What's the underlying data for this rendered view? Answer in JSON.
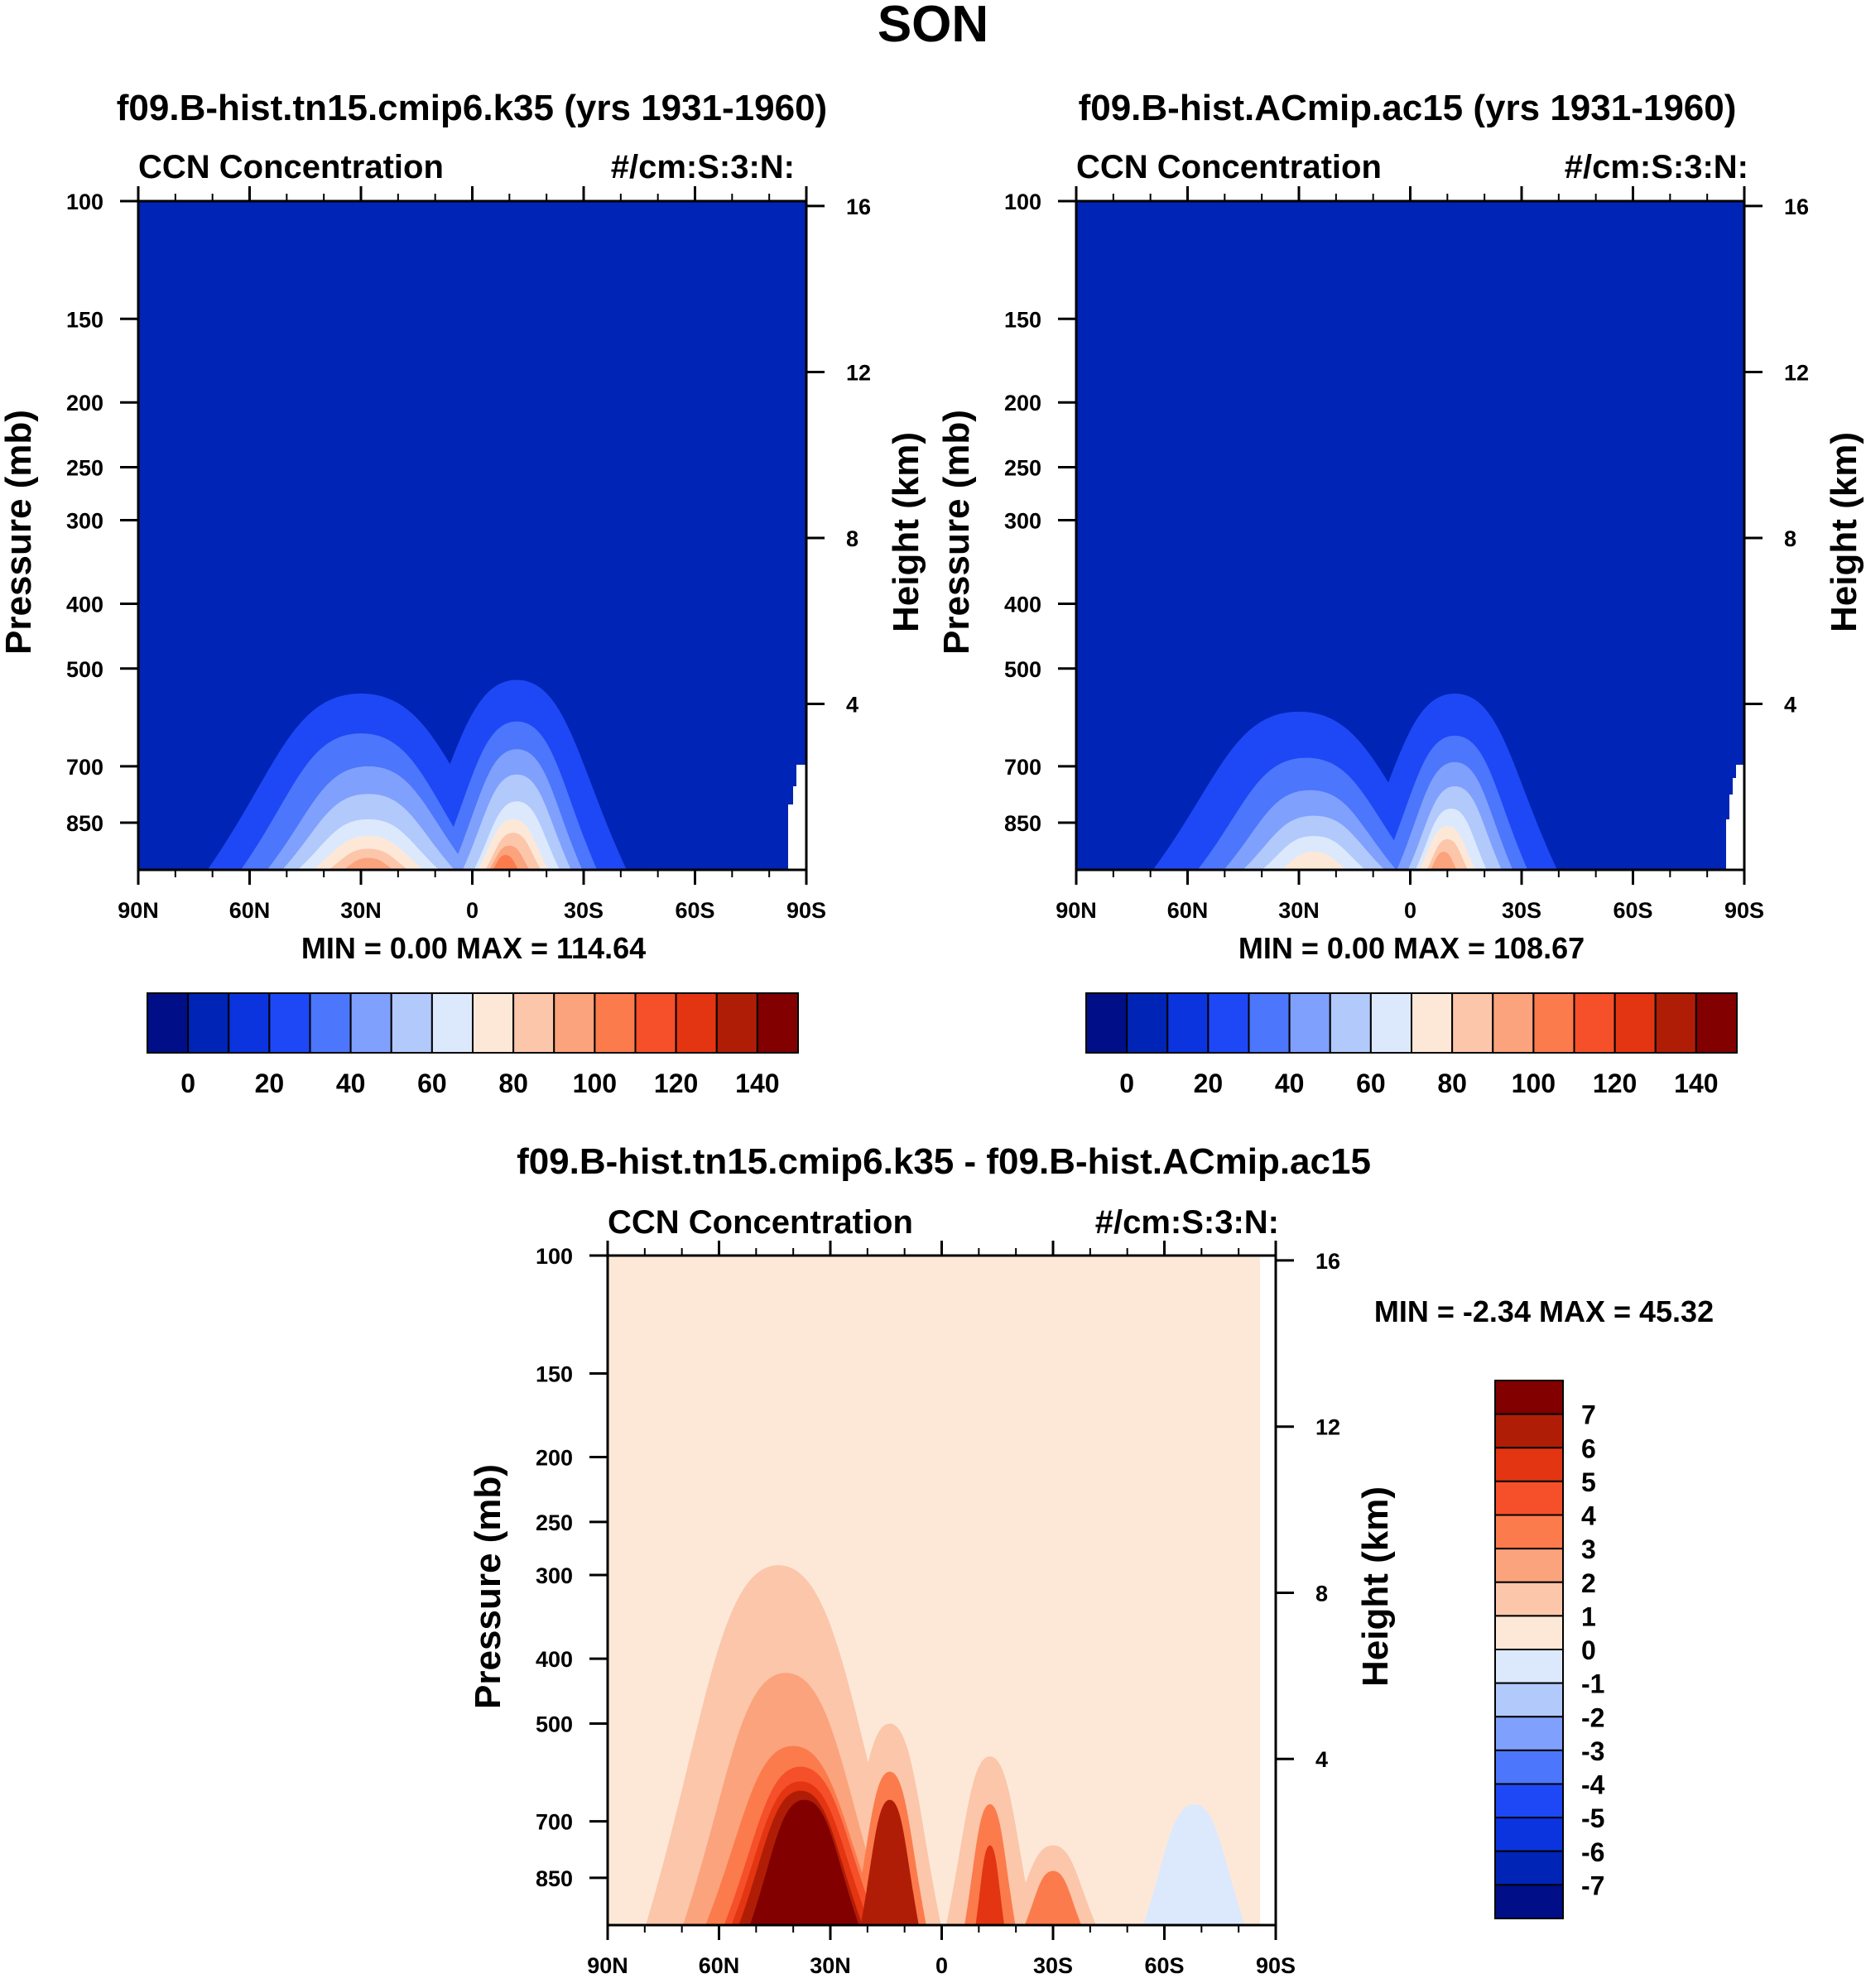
{
  "figure": {
    "title": "SON"
  },
  "panels": [
    {
      "title": "f09.B-hist.tn15.cmip6.k35 (yrs 1931-1960)",
      "left_label": "CCN Concentration",
      "right_label": "#/cm:S:3:N:",
      "stats": "MIN =   0.00  MAX = 114.64"
    },
    {
      "title": "f09.B-hist.ACmip.ac15 (yrs 1931-1960)",
      "left_label": "CCN Concentration",
      "right_label": "#/cm:S:3:N:",
      "stats": "MIN =   0.00  MAX = 108.67"
    },
    {
      "title": "f09.B-hist.tn15.cmip6.k35 - f09.B-hist.ACmip.ac15",
      "left_label": "CCN Concentration",
      "right_label": "#/cm:S:3:N:",
      "stats": "MIN =  -2.34  MAX =  45.32"
    }
  ],
  "chart_data": [
    {
      "type": "heatmap",
      "title": "f09.B-hist.tn15.cmip6.k35 (yrs 1931-1960)",
      "xlabel": "",
      "ylabel": "Pressure (mb)",
      "y2label": "Height (km)",
      "x_ticks": [
        "90N",
        "60N",
        "30N",
        "0",
        "30S",
        "60S",
        "90S"
      ],
      "x_range": [
        90,
        -90
      ],
      "y_ticks": [
        100,
        150,
        200,
        250,
        300,
        400,
        500,
        700,
        850
      ],
      "y_range_mb": [
        100,
        1000
      ],
      "y2_ticks": [
        16,
        12,
        8,
        4
      ],
      "colorbar": {
        "orientation": "horizontal",
        "labels": [
          "0",
          "20",
          "40",
          "60",
          "80",
          "100",
          "120",
          "140"
        ],
        "colors": [
          "#000f87",
          "#0024b5",
          "#0b34df",
          "#1e48f5",
          "#4c76fb",
          "#7fa0fc",
          "#b2c9fb",
          "#dce9fc",
          "#fde8d8",
          "#fbc6aa",
          "#fba37c",
          "#fb7b4d",
          "#f5502a",
          "#e33512",
          "#b01d07",
          "#820000"
        ]
      },
      "lobes": [
        {
          "lat": 30,
          "half_width": 42,
          "p_top": 545,
          "level": 3
        },
        {
          "lat": 30,
          "half_width": 33,
          "p_top": 625,
          "level": 4
        },
        {
          "lat": 28,
          "half_width": 28,
          "p_top": 700,
          "level": 5
        },
        {
          "lat": 28,
          "half_width": 24,
          "p_top": 770,
          "level": 6
        },
        {
          "lat": 28,
          "half_width": 20,
          "p_top": 840,
          "level": 7
        },
        {
          "lat": 28,
          "half_width": 16,
          "p_top": 890,
          "level": 8
        },
        {
          "lat": 28,
          "half_width": 12,
          "p_top": 930,
          "level": 9
        },
        {
          "lat": 28,
          "half_width": 8,
          "p_top": 960,
          "level": 10
        },
        {
          "lat": -12,
          "half_width": 30,
          "p_top": 520,
          "level": 3
        },
        {
          "lat": -12,
          "half_width": 22,
          "p_top": 600,
          "level": 4
        },
        {
          "lat": -12,
          "half_width": 18,
          "p_top": 660,
          "level": 5
        },
        {
          "lat": -12,
          "half_width": 15,
          "p_top": 720,
          "level": 6
        },
        {
          "lat": -12,
          "half_width": 12,
          "p_top": 790,
          "level": 7
        },
        {
          "lat": -11,
          "half_width": 10,
          "p_top": 840,
          "level": 8
        },
        {
          "lat": -11,
          "half_width": 8,
          "p_top": 880,
          "level": 9
        },
        {
          "lat": -10,
          "half_width": 6,
          "p_top": 920,
          "level": 10
        },
        {
          "lat": -9,
          "half_width": 4,
          "p_top": 950,
          "level": 11
        }
      ]
    },
    {
      "type": "heatmap",
      "title": "f09.B-hist.ACmip.ac15 (yrs 1931-1960)",
      "xlabel": "",
      "ylabel": "Pressure (mb)",
      "y2label": "Height (km)",
      "x_ticks": [
        "90N",
        "60N",
        "30N",
        "0",
        "30S",
        "60S",
        "90S"
      ],
      "x_range": [
        90,
        -90
      ],
      "y_ticks": [
        100,
        150,
        200,
        250,
        300,
        400,
        500,
        700,
        850
      ],
      "y_range_mb": [
        100,
        1000
      ],
      "y2_ticks": [
        16,
        12,
        8,
        4
      ],
      "colorbar": {
        "orientation": "horizontal",
        "labels": [
          "0",
          "20",
          "40",
          "60",
          "80",
          "100",
          "120",
          "140"
        ],
        "colors": [
          "#000f87",
          "#0024b5",
          "#0b34df",
          "#1e48f5",
          "#4c76fb",
          "#7fa0fc",
          "#b2c9fb",
          "#dce9fc",
          "#fde8d8",
          "#fbc6aa",
          "#fba37c",
          "#fb7b4d",
          "#f5502a",
          "#e33512",
          "#b01d07",
          "#820000"
        ]
      },
      "lobes": [
        {
          "lat": 30,
          "half_width": 40,
          "p_top": 580,
          "level": 3
        },
        {
          "lat": 28,
          "half_width": 30,
          "p_top": 680,
          "level": 4
        },
        {
          "lat": 27,
          "half_width": 24,
          "p_top": 760,
          "level": 5
        },
        {
          "lat": 26,
          "half_width": 20,
          "p_top": 830,
          "level": 6
        },
        {
          "lat": 26,
          "half_width": 15,
          "p_top": 890,
          "level": 7
        },
        {
          "lat": 26,
          "half_width": 10,
          "p_top": 940,
          "level": 8
        },
        {
          "lat": -12,
          "half_width": 28,
          "p_top": 545,
          "level": 3
        },
        {
          "lat": -12,
          "half_width": 20,
          "p_top": 630,
          "level": 4
        },
        {
          "lat": -12,
          "half_width": 16,
          "p_top": 690,
          "level": 5
        },
        {
          "lat": -12,
          "half_width": 13,
          "p_top": 750,
          "level": 6
        },
        {
          "lat": -11,
          "half_width": 10,
          "p_top": 810,
          "level": 7
        },
        {
          "lat": -10,
          "half_width": 8,
          "p_top": 860,
          "level": 8
        },
        {
          "lat": -10,
          "half_width": 6,
          "p_top": 900,
          "level": 9
        },
        {
          "lat": -9,
          "half_width": 4,
          "p_top": 940,
          "level": 10
        }
      ]
    },
    {
      "type": "heatmap",
      "title": "f09.B-hist.tn15.cmip6.k35 - f09.B-hist.ACmip.ac15",
      "xlabel": "",
      "ylabel": "Pressure (mb)",
      "y2label": "Height (km)",
      "x_ticks": [
        "90N",
        "60N",
        "30N",
        "0",
        "30S",
        "60S",
        "90S"
      ],
      "x_range": [
        90,
        -90
      ],
      "y_ticks": [
        100,
        150,
        200,
        250,
        300,
        400,
        500,
        700,
        850
      ],
      "y_range_mb": [
        100,
        1000
      ],
      "y2_ticks": [
        16,
        12,
        8,
        4
      ],
      "colorbar": {
        "orientation": "vertical",
        "labels": [
          "7",
          "6",
          "5",
          "4",
          "3",
          "2",
          "1",
          "0",
          "-1",
          "-2",
          "-3",
          "-4",
          "-5",
          "-6",
          "-7"
        ],
        "colors": [
          "#820000",
          "#b01d07",
          "#e33512",
          "#f5502a",
          "#fb7b4d",
          "#fba37c",
          "#fbc6aa",
          "#fde8d8",
          "#dce9fc",
          "#b2c9fb",
          "#7fa0fc",
          "#4c76fb",
          "#1e48f5",
          "#0b34df",
          "#0024b5",
          "#000f87"
        ]
      },
      "lobes": [
        {
          "lat": 44,
          "half_width": 36,
          "p_top": 290,
          "level": 6
        },
        {
          "lat": 42,
          "half_width": 28,
          "p_top": 420,
          "level": 5
        },
        {
          "lat": 40,
          "half_width": 24,
          "p_top": 540,
          "level": 4
        },
        {
          "lat": 38,
          "half_width": 21,
          "p_top": 580,
          "level": 3
        },
        {
          "lat": 38,
          "half_width": 19,
          "p_top": 610,
          "level": 2
        },
        {
          "lat": 38,
          "half_width": 17,
          "p_top": 630,
          "level": 1
        },
        {
          "lat": 37,
          "half_width": 15,
          "p_top": 650,
          "level": 0
        },
        {
          "lat": 14,
          "half_width": 14,
          "p_top": 500,
          "level": 6
        },
        {
          "lat": 14,
          "half_width": 10,
          "p_top": 590,
          "level": 4
        },
        {
          "lat": 14,
          "half_width": 8,
          "p_top": 650,
          "level": 1
        },
        {
          "lat": -13,
          "half_width": 12,
          "p_top": 560,
          "level": 6
        },
        {
          "lat": -13,
          "half_width": 7,
          "p_top": 660,
          "level": 4
        },
        {
          "lat": -13,
          "half_width": 4,
          "p_top": 760,
          "level": 2
        },
        {
          "lat": -30,
          "half_width": 12,
          "p_top": 760,
          "level": 6
        },
        {
          "lat": -30,
          "half_width": 8,
          "p_top": 830,
          "level": 4
        },
        {
          "lat": -68,
          "half_width": 14,
          "p_top": 660,
          "level": 8
        },
        {
          "lat": -61,
          "half_width": 3,
          "p_top": 960,
          "level": 9
        }
      ]
    }
  ]
}
